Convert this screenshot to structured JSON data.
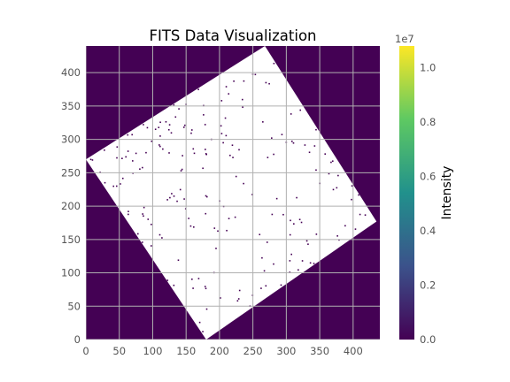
{
  "chart_data": {
    "type": "heatmap",
    "title": "FITS Data Visualization",
    "xlabel": "",
    "ylabel": "",
    "xlim": [
      0,
      440
    ],
    "ylim": [
      0,
      440
    ],
    "x_ticks": [
      0,
      50,
      100,
      150,
      200,
      250,
      300,
      350,
      400
    ],
    "y_ticks": [
      0,
      50,
      100,
      150,
      200,
      250,
      300,
      350,
      400
    ],
    "grid": true,
    "background_value": 0,
    "colormap": "viridis",
    "colormap_stops": [
      "#440154",
      "#3b528b",
      "#21918c",
      "#5ec962",
      "#fde725"
    ],
    "nan_color": "#ffffff",
    "image_region": {
      "description_type": "rotated square of missing (NaN) pixels",
      "corners": [
        [
          180,
          0
        ],
        [
          435,
          177
        ],
        [
          268,
          440
        ],
        [
          0,
          270
        ]
      ]
    },
    "colorbar": {
      "label": "Intensity",
      "multiplier": "1e7",
      "min": 0.0,
      "max": 1.08,
      "tick_values": [
        0.0,
        0.2,
        0.4,
        0.6,
        0.8,
        1.0
      ],
      "tick_labels": [
        "0.0",
        "0.2",
        "0.4",
        "0.6",
        "0.8",
        "1.0"
      ]
    }
  }
}
